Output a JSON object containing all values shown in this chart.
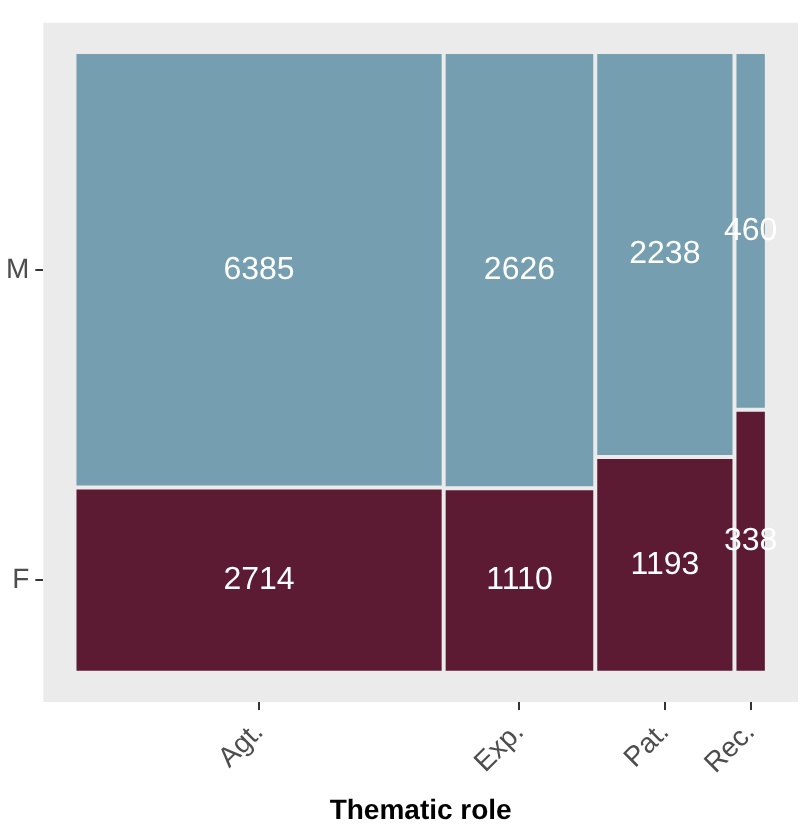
{
  "chart_data": {
    "type": "other",
    "xlabel": "Thematic role",
    "categories": [
      "Agt.",
      "Exp.",
      "Pat.",
      "Rec."
    ],
    "series": [
      {
        "name": "F",
        "color": "#5c1a33",
        "values": [
          2714,
          1110,
          1193,
          338
        ]
      },
      {
        "name": "M",
        "color": "#759fb0",
        "values": [
          6385,
          2626,
          2238,
          460
        ]
      }
    ],
    "data_labels": true
  }
}
